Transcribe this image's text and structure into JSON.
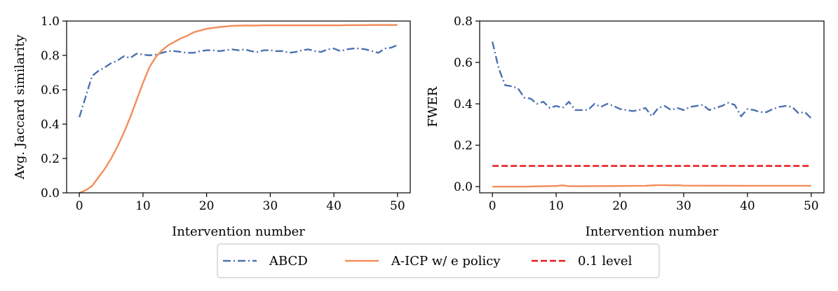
{
  "chart_data": [
    {
      "type": "line",
      "xlabel": "Intervention number",
      "ylabel": "Avg. Jaccard similarity",
      "xlim": [
        -2,
        52
      ],
      "ylim": [
        0,
        1.0
      ],
      "xticks": [
        0,
        10,
        20,
        30,
        40,
        50
      ],
      "yticks": [
        0.0,
        0.2,
        0.4,
        0.6,
        0.8,
        1.0
      ],
      "ytick_labels": [
        "0.0",
        "0.2",
        "0.4",
        "0.6",
        "0.8",
        "1.0"
      ],
      "grid": false,
      "series": [
        {
          "name": "ABCD",
          "color": "#4c72b0",
          "style": "dashdot",
          "x": [
            0,
            1,
            2,
            3,
            4,
            5,
            6,
            7,
            8,
            9,
            10,
            11,
            12,
            13,
            14,
            15,
            16,
            17,
            18,
            19,
            20,
            21,
            22,
            23,
            24,
            25,
            26,
            27,
            28,
            29,
            30,
            31,
            32,
            33,
            34,
            35,
            36,
            37,
            38,
            39,
            40,
            41,
            42,
            43,
            44,
            45,
            46,
            47,
            48,
            49,
            50
          ],
          "y": [
            0.44,
            0.56,
            0.68,
            0.71,
            0.73,
            0.755,
            0.77,
            0.795,
            0.785,
            0.81,
            0.805,
            0.8,
            0.805,
            0.815,
            0.825,
            0.825,
            0.82,
            0.815,
            0.815,
            0.825,
            0.83,
            0.83,
            0.825,
            0.83,
            0.835,
            0.83,
            0.835,
            0.825,
            0.82,
            0.83,
            0.83,
            0.825,
            0.825,
            0.815,
            0.82,
            0.83,
            0.835,
            0.825,
            0.82,
            0.835,
            0.84,
            0.825,
            0.835,
            0.84,
            0.84,
            0.835,
            0.825,
            0.815,
            0.84,
            0.845,
            0.86
          ]
        },
        {
          "name": "A-ICP w/ e policy",
          "color": "#f28e5b",
          "style": "solid",
          "x": [
            0,
            1,
            2,
            3,
            4,
            5,
            6,
            7,
            8,
            9,
            10,
            11,
            12,
            13,
            14,
            15,
            16,
            17,
            18,
            19,
            20,
            21,
            22,
            23,
            24,
            25,
            26,
            27,
            28,
            29,
            30,
            31,
            32,
            33,
            34,
            35,
            36,
            37,
            38,
            39,
            40,
            41,
            42,
            43,
            44,
            45,
            46,
            47,
            48,
            49,
            50
          ],
          "y": [
            0.0,
            0.015,
            0.04,
            0.09,
            0.14,
            0.2,
            0.27,
            0.35,
            0.44,
            0.54,
            0.64,
            0.73,
            0.79,
            0.83,
            0.86,
            0.88,
            0.9,
            0.915,
            0.935,
            0.945,
            0.955,
            0.96,
            0.965,
            0.968,
            0.972,
            0.973,
            0.974,
            0.974,
            0.974,
            0.975,
            0.975,
            0.975,
            0.975,
            0.975,
            0.975,
            0.975,
            0.975,
            0.975,
            0.975,
            0.975,
            0.975,
            0.975,
            0.976,
            0.976,
            0.976,
            0.976,
            0.977,
            0.977,
            0.977,
            0.977,
            0.977
          ]
        }
      ]
    },
    {
      "type": "line",
      "xlabel": "Intervention number",
      "ylabel": "FWER",
      "xlim": [
        -2,
        52
      ],
      "ylim": [
        -0.03,
        0.8
      ],
      "xticks": [
        0,
        10,
        20,
        30,
        40,
        50
      ],
      "yticks": [
        0.0,
        0.2,
        0.4,
        0.6,
        0.8
      ],
      "ytick_labels": [
        "0.0",
        "0.2",
        "0.4",
        "0.6",
        "0.8"
      ],
      "grid": false,
      "series": [
        {
          "name": "ABCD",
          "color": "#4c72b0",
          "style": "dashdot",
          "x": [
            0,
            1,
            2,
            3,
            4,
            5,
            6,
            7,
            8,
            9,
            10,
            11,
            12,
            13,
            14,
            15,
            16,
            17,
            18,
            19,
            20,
            21,
            22,
            23,
            24,
            25,
            26,
            27,
            28,
            29,
            30,
            31,
            32,
            33,
            34,
            35,
            36,
            37,
            38,
            39,
            40,
            41,
            42,
            43,
            44,
            45,
            46,
            47,
            48,
            49,
            50
          ],
          "y": [
            0.7,
            0.57,
            0.49,
            0.485,
            0.475,
            0.43,
            0.425,
            0.4,
            0.41,
            0.38,
            0.39,
            0.38,
            0.41,
            0.37,
            0.37,
            0.37,
            0.4,
            0.385,
            0.4,
            0.39,
            0.375,
            0.37,
            0.365,
            0.37,
            0.38,
            0.34,
            0.38,
            0.39,
            0.37,
            0.38,
            0.37,
            0.385,
            0.39,
            0.395,
            0.37,
            0.38,
            0.39,
            0.405,
            0.395,
            0.34,
            0.375,
            0.37,
            0.36,
            0.36,
            0.375,
            0.385,
            0.39,
            0.385,
            0.355,
            0.36,
            0.33
          ]
        },
        {
          "name": "A-ICP w/ e policy",
          "color": "#f28e5b",
          "style": "solid",
          "x": [
            0,
            5,
            10,
            11,
            12,
            20,
            24,
            25,
            26,
            27,
            28,
            29,
            30,
            40,
            50
          ],
          "y": [
            0.0,
            0.0,
            0.003,
            0.006,
            0.002,
            0.003,
            0.004,
            0.006,
            0.007,
            0.007,
            0.006,
            0.007,
            0.005,
            0.004,
            0.004
          ]
        },
        {
          "name": "0.1 level",
          "color": "#e41a1c",
          "style": "dashed",
          "x": [
            0,
            50
          ],
          "y": [
            0.1,
            0.1
          ]
        }
      ]
    }
  ],
  "legend": {
    "placement": "bottom-center",
    "entries": [
      {
        "label": "ABCD",
        "color": "#4c72b0",
        "style": "dashdot"
      },
      {
        "label": "A-ICP w/ e policy",
        "color": "#f28e5b",
        "style": "solid"
      },
      {
        "label": "0.1 level",
        "color": "#e41a1c",
        "style": "dashed"
      }
    ]
  }
}
